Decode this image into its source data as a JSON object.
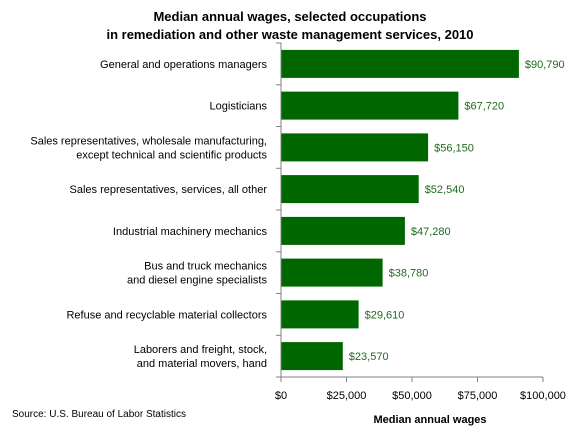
{
  "chart_data": {
    "type": "bar",
    "orientation": "horizontal",
    "title": [
      "Median annual wages, selected occupations",
      "in remediation and other waste management services, 2010"
    ],
    "categories": [
      [
        "General and operations managers"
      ],
      [
        "Logisticians"
      ],
      [
        "Sales representatives, wholesale manufacturing,",
        "except technical and scientific products"
      ],
      [
        "Sales representatives, services, all other"
      ],
      [
        "Industrial machinery mechanics"
      ],
      [
        "Bus and truck mechanics",
        "and diesel engine specialists"
      ],
      [
        "Refuse and recyclable material collectors"
      ],
      [
        "Laborers and freight, stock,",
        "and material movers, hand"
      ]
    ],
    "values": [
      90790,
      67720,
      56150,
      52540,
      47280,
      38780,
      29610,
      23570
    ],
    "value_labels": [
      "$90,790",
      "$67,720",
      "$56,150",
      "$52,540",
      "$47,280",
      "$38,780",
      "$29,610",
      "$23,570"
    ],
    "xlim": [
      0,
      100000
    ],
    "x_ticks": [
      0,
      25000,
      50000,
      75000,
      100000
    ],
    "x_tick_labels": [
      "$0",
      "$25,000",
      "$50,000",
      "$75,000",
      "$100,000"
    ],
    "xlabel": "Median annual wages",
    "ylabel": "",
    "grid": false,
    "bar_color": "#006600",
    "label_color": "#1f6b1f"
  },
  "source": "Source: U.S. Bureau of Labor Statistics"
}
